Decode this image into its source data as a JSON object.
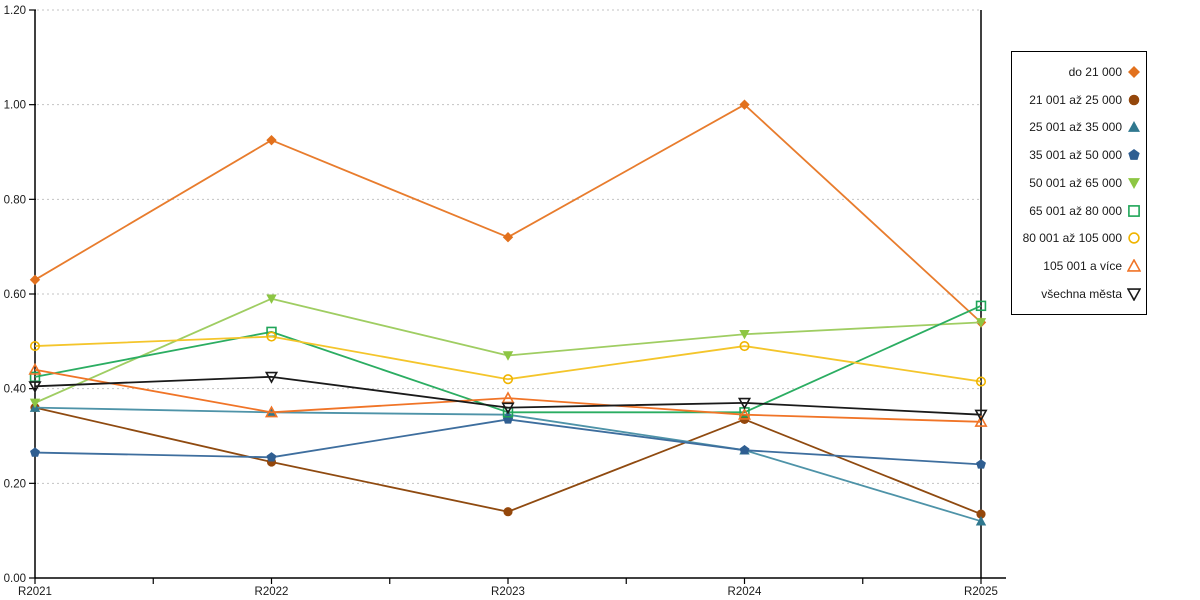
{
  "chart_data": {
    "type": "line",
    "title": "",
    "xlabel": "",
    "ylabel": "",
    "ylim": [
      0.0,
      1.2
    ],
    "grid": "horizontal-dashed",
    "legend_position": "right",
    "categories": [
      "R2021",
      "R2022",
      "R2023",
      "R2024",
      "R2025"
    ],
    "y_ticks": [
      "0.00",
      "0.20",
      "0.40",
      "0.60",
      "0.80",
      "1.00",
      "1.20"
    ],
    "axis_color": "#000000",
    "gridline_color": "#c3c3c3",
    "series": [
      {
        "name": "do 21 000",
        "marker": "diamond-icon",
        "color": "#e87c2d",
        "marker_color": "#e2711d",
        "values": [
          0.63,
          0.925,
          0.72,
          1.0,
          0.54
        ]
      },
      {
        "name": "21 001 až 25 000",
        "marker": "filled-circle-icon",
        "color": "#8f4a10",
        "marker_color": "#94470b",
        "values": [
          0.36,
          0.245,
          0.14,
          0.335,
          0.135
        ]
      },
      {
        "name": "25 001 až 35 000",
        "marker": "filled-triangle-up-icon",
        "color": "#4e93a8",
        "marker_color": "#30788f",
        "values": [
          0.36,
          0.35,
          0.345,
          0.27,
          0.12
        ]
      },
      {
        "name": "35 001 až 50 000",
        "marker": "pentagon-icon",
        "color": "#3e6e9e",
        "marker_color": "#2f5e91",
        "values": [
          0.265,
          0.255,
          0.335,
          0.27,
          0.24
        ]
      },
      {
        "name": "50 001 až 65 000",
        "marker": "filled-triangle-down-icon",
        "color": "#9fcd62",
        "marker_color": "#8dc643",
        "values": [
          0.37,
          0.59,
          0.47,
          0.515,
          0.54
        ]
      },
      {
        "name": "65 001 až 80 000",
        "marker": "open-square-icon",
        "color": "#2bad62",
        "marker_color": "#1fa558",
        "values": [
          0.425,
          0.52,
          0.35,
          0.35,
          0.575
        ]
      },
      {
        "name": "80 001 až 105 000",
        "marker": "open-circle-icon",
        "color": "#f4c52b",
        "marker_color": "#f0b400",
        "values": [
          0.49,
          0.51,
          0.42,
          0.49,
          0.415
        ]
      },
      {
        "name": "105 001 a více",
        "marker": "open-triangle-up-icon",
        "color": "#f07427",
        "marker_color": "#f07427",
        "values": [
          0.44,
          0.35,
          0.38,
          0.345,
          0.33
        ]
      },
      {
        "name": "všechna města",
        "marker": "open-triangle-down-icon",
        "color": "#1a1a1a",
        "marker_color": "#1a1a1a",
        "values": [
          0.405,
          0.425,
          0.36,
          0.37,
          0.345
        ]
      }
    ]
  }
}
